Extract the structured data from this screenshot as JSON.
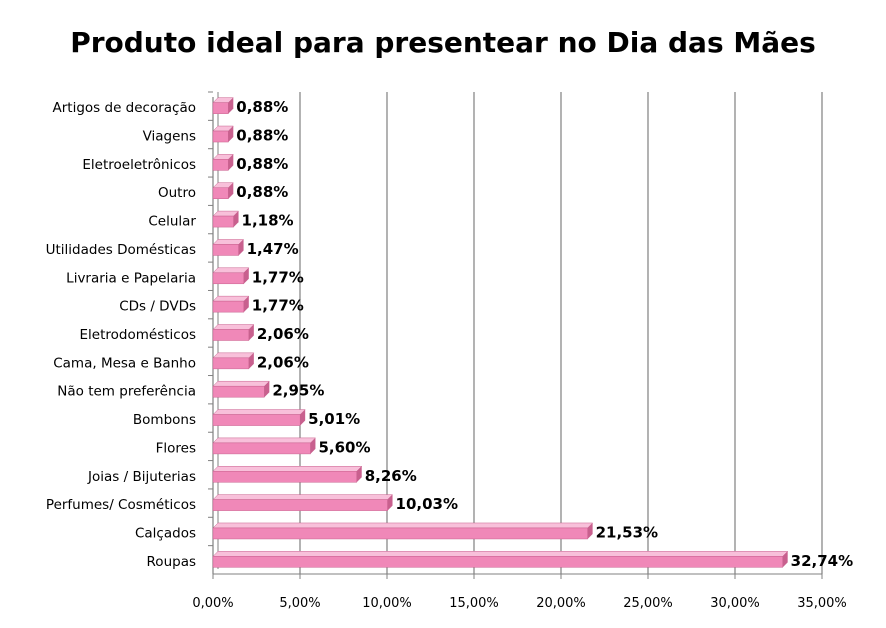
{
  "chart_data": {
    "type": "bar",
    "orientation": "horizontal",
    "title": "Produto ideal para presentear no Dia das Mães",
    "xlabel": "",
    "ylabel": "",
    "categories": [
      "Artigos de decoração",
      "Viagens",
      "Eletroeletrônicos",
      "Outro",
      "Celular",
      "Utilidades Domésticas",
      "Livraria e Papelaria",
      "CDs / DVDs",
      "Eletrodomésticos",
      "Cama, Mesa e Banho",
      "Não tem preferência",
      "Bombons",
      "Flores",
      "Joias / Bijuterias",
      "Perfumes/ Cosméticos",
      "Calçados",
      "Roupas"
    ],
    "values": [
      0.88,
      0.88,
      0.88,
      0.88,
      1.18,
      1.47,
      1.77,
      1.77,
      2.06,
      2.06,
      2.95,
      5.01,
      5.6,
      8.26,
      10.03,
      21.53,
      32.74
    ],
    "value_labels": [
      "0,88%",
      "0,88%",
      "0,88%",
      "0,88%",
      "1,18%",
      "1,47%",
      "1,77%",
      "1,77%",
      "2,06%",
      "2,06%",
      "2,95%",
      "5,01%",
      "5,60%",
      "8,26%",
      "10,03%",
      "21,53%",
      "32,74%"
    ],
    "xlim": [
      0,
      35
    ],
    "x_ticks": [
      0,
      5,
      10,
      15,
      20,
      25,
      30,
      35
    ],
    "x_tick_labels": [
      "0,00%",
      "5,00%",
      "10,00%",
      "15,00%",
      "20,00%",
      "25,00%",
      "30,00%",
      "35,00%"
    ],
    "grid": "vertical",
    "legend": "none",
    "colors": {
      "bar_front": "#f088b8",
      "bar_top": "#f8c0da",
      "bar_side": "#c8608e",
      "grid": "#808080",
      "axis": "#808080"
    }
  }
}
